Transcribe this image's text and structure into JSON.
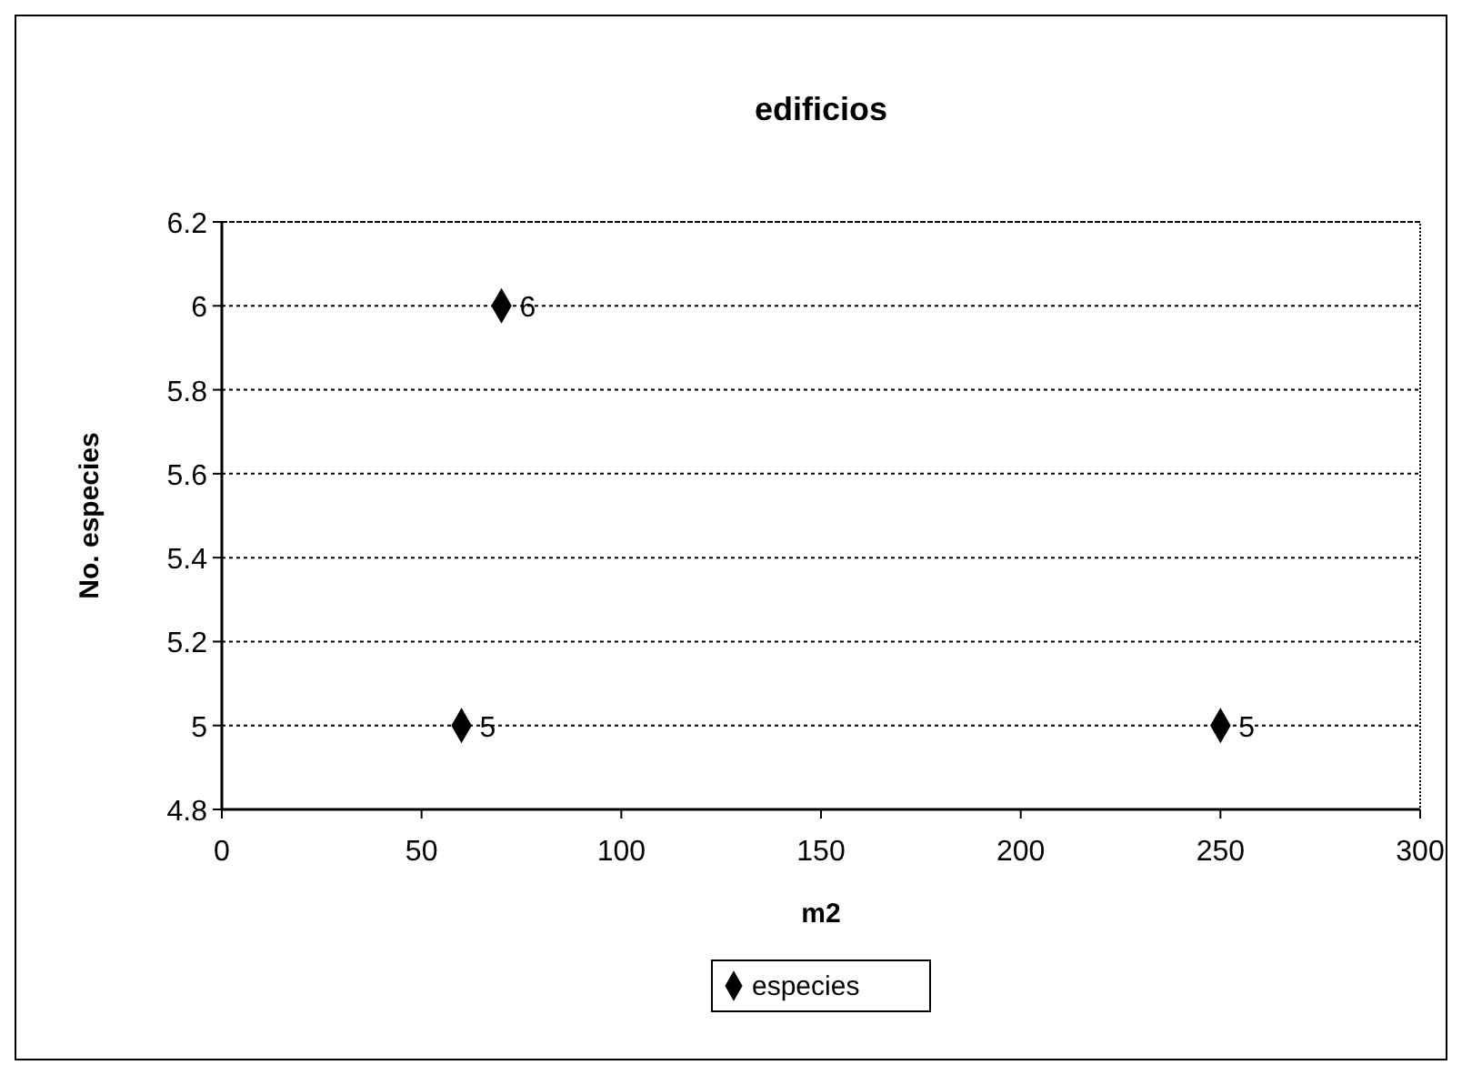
{
  "chart_data": {
    "type": "scatter",
    "title": "edificios",
    "xlabel": "m2",
    "ylabel": "No. especies",
    "x": [
      60,
      70,
      250
    ],
    "series": [
      {
        "name": "especies",
        "color": "#000000",
        "values": [
          5,
          6,
          5
        ]
      }
    ],
    "xlim": [
      0,
      300
    ],
    "xticks": [
      0,
      50,
      100,
      150,
      200,
      250,
      300
    ],
    "ylim": [
      4.8,
      6.2
    ],
    "yticks": [
      4.8,
      5,
      5.2,
      5.4,
      5.6,
      5.8,
      6,
      6.2
    ],
    "grid": "y",
    "legend": "bottom",
    "marker": "diamond",
    "data_labels": true
  }
}
